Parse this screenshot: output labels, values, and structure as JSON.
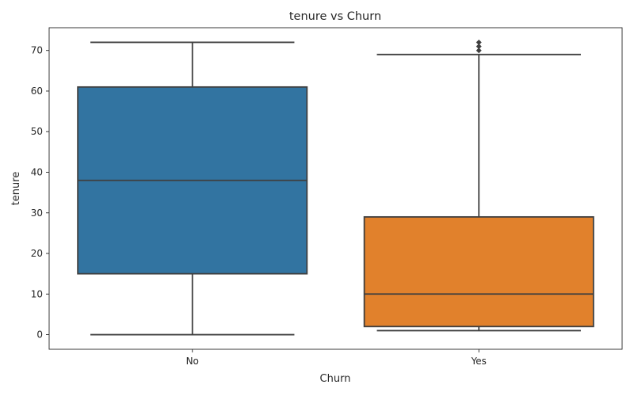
{
  "chart_data": {
    "type": "box",
    "title": "tenure vs Churn",
    "xlabel": "Churn",
    "ylabel": "tenure",
    "categories": [
      "No",
      "Yes"
    ],
    "ylim": [
      -3.6,
      75.6
    ],
    "yticks": [
      0,
      10,
      20,
      30,
      40,
      50,
      60,
      70
    ],
    "boxes": [
      {
        "name": "No",
        "color": "#3274a1",
        "min": 0,
        "q1": 15,
        "median": 38,
        "q3": 61,
        "max": 72,
        "outliers": []
      },
      {
        "name": "Yes",
        "color": "#e1812c",
        "min": 1,
        "q1": 2,
        "median": 10,
        "q3": 29,
        "max": 69,
        "outliers": [
          70,
          71,
          72
        ]
      }
    ],
    "grid": false
  }
}
